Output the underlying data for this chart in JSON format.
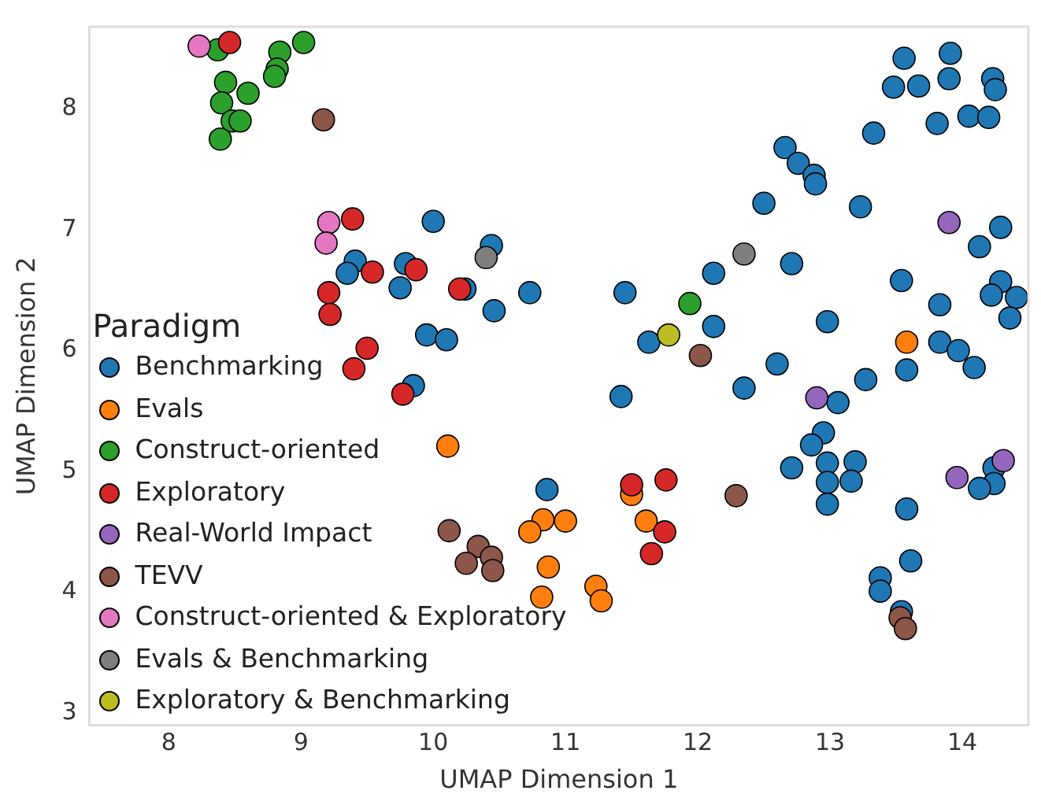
{
  "chart_data": {
    "type": "scatter",
    "xlabel": "UMAP Dimension 1",
    "ylabel": "UMAP Dimension 2",
    "legend_title": "Paradigm",
    "legend": "bottom left",
    "marker": "circle",
    "xlim": [
      7.4,
      14.5
    ],
    "ylim": [
      2.9,
      8.68
    ],
    "xticks": [
      8,
      9,
      10,
      11,
      12,
      13,
      14
    ],
    "yticks": [
      3,
      4,
      5,
      6,
      7,
      8
    ],
    "series": [
      {
        "name": "Benchmarking",
        "color": "#1f77b4",
        "x": [
          10.0,
          10.44,
          9.41,
          9.35,
          9.79,
          9.75,
          10.24,
          10.73,
          10.46,
          11.45,
          9.95,
          10.1,
          11.63,
          9.85,
          11.42,
          10.86,
          13.56,
          13.91,
          13.48,
          13.67,
          13.9,
          14.23,
          14.25,
          14.05,
          14.2,
          13.81,
          13.33,
          12.66,
          12.76,
          12.88,
          12.89,
          12.5,
          13.23,
          14.29,
          14.13,
          12.71,
          12.12,
          13.54,
          14.29,
          14.22,
          14.41,
          13.83,
          14.36,
          12.98,
          12.12,
          12.6,
          12.35,
          13.83,
          13.97,
          14.09,
          13.58,
          13.27,
          13.06,
          12.95,
          12.86,
          12.71,
          12.98,
          13.19,
          12.98,
          13.16,
          12.98,
          13.58,
          14.24,
          14.24,
          14.13,
          13.61,
          13.38,
          13.38,
          13.54
        ],
        "values": [
          7.07,
          6.87,
          6.74,
          6.64,
          6.72,
          6.52,
          6.51,
          6.48,
          6.33,
          6.48,
          6.13,
          6.09,
          6.07,
          5.71,
          5.62,
          4.85,
          8.42,
          8.46,
          8.18,
          8.19,
          8.25,
          8.25,
          8.16,
          7.94,
          7.93,
          7.88,
          7.8,
          7.68,
          7.55,
          7.45,
          7.38,
          7.22,
          7.19,
          7.02,
          6.86,
          6.72,
          6.64,
          6.58,
          6.57,
          6.46,
          6.44,
          6.38,
          6.27,
          6.24,
          6.2,
          5.89,
          5.69,
          6.07,
          6.0,
          5.86,
          5.84,
          5.76,
          5.57,
          5.32,
          5.22,
          5.03,
          5.07,
          5.08,
          4.91,
          4.92,
          4.73,
          4.69,
          5.03,
          4.9,
          4.86,
          4.26,
          4.12,
          4.01,
          3.84
        ]
      },
      {
        "name": "Evals",
        "color": "#ff7f0e",
        "x": [
          10.11,
          13.58,
          11.5,
          10.83,
          11.0,
          10.73,
          11.61,
          10.87,
          10.82,
          11.23,
          11.27
        ],
        "values": [
          5.21,
          6.07,
          4.81,
          4.6,
          4.59,
          4.5,
          4.59,
          4.21,
          3.96,
          4.05,
          3.93
        ]
      },
      {
        "name": "Construct-oriented",
        "color": "#2ca02c",
        "x": [
          8.37,
          8.84,
          9.02,
          8.82,
          8.8,
          8.43,
          8.6,
          8.4,
          8.48,
          8.54,
          8.39,
          11.94
        ],
        "values": [
          8.49,
          8.47,
          8.55,
          8.33,
          8.27,
          8.22,
          8.13,
          8.05,
          7.9,
          7.9,
          7.75,
          6.39
        ]
      },
      {
        "name": "Exploratory",
        "color": "#d62728",
        "x": [
          8.46,
          9.39,
          9.54,
          9.87,
          9.21,
          9.22,
          10.2,
          9.5,
          9.4,
          9.77,
          11.5,
          11.76,
          11.75,
          11.65
        ],
        "values": [
          8.55,
          7.09,
          6.65,
          6.67,
          6.48,
          6.3,
          6.51,
          6.02,
          5.85,
          5.64,
          4.89,
          4.93,
          4.5,
          4.32
        ]
      },
      {
        "name": "Real-World Impact",
        "color": "#9467bd",
        "x": [
          13.9,
          12.9,
          13.96,
          14.31
        ],
        "values": [
          7.06,
          5.61,
          4.95,
          5.09
        ]
      },
      {
        "name": "TEVV",
        "color": "#8c564b",
        "x": [
          9.17,
          12.02,
          12.29,
          13.53,
          13.57,
          10.12,
          10.34,
          10.44,
          10.25,
          10.45
        ],
        "values": [
          7.91,
          5.96,
          4.8,
          3.79,
          3.7,
          4.51,
          4.38,
          4.29,
          4.24,
          4.18
        ]
      },
      {
        "name": "Construct-oriented & Exploratory",
        "color": "#e377c2",
        "x": [
          8.23,
          9.21,
          9.19
        ],
        "values": [
          8.52,
          7.06,
          6.89
        ]
      },
      {
        "name": "Evals & Benchmarking",
        "color": "#7f7f7f",
        "x": [
          10.4,
          12.35
        ],
        "values": [
          6.77,
          6.8
        ]
      },
      {
        "name": "Exploratory & Benchmarking",
        "color": "#bcbd22",
        "x": [
          11.78
        ],
        "values": [
          6.13
        ]
      }
    ]
  }
}
